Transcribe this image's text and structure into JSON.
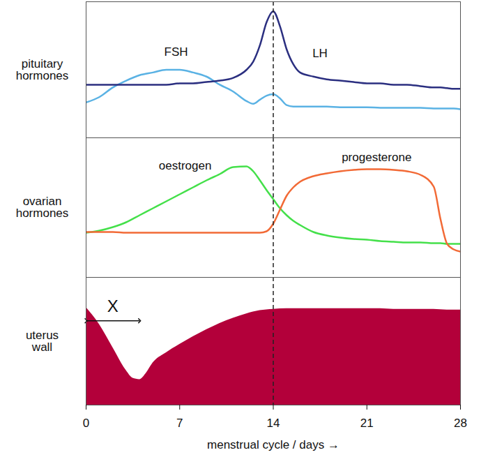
{
  "chart_data": [
    {
      "type": "line",
      "ylabel": "pituitary hormones",
      "x": [
        0,
        1,
        2,
        3,
        4,
        5,
        6,
        7,
        8,
        9,
        10,
        11,
        12,
        12.5,
        13,
        13.5,
        14,
        14.5,
        15,
        15.5,
        16,
        17,
        18,
        19,
        20,
        21,
        22,
        23,
        24,
        25,
        26,
        26.5,
        27,
        27.5,
        28
      ],
      "series": [
        {
          "name": "FSH",
          "color": "#5ab2e4",
          "values": [
            26,
            30,
            37,
            42,
            46,
            48,
            50,
            50,
            48,
            45,
            39,
            34,
            27,
            25,
            28,
            31,
            32,
            29,
            24,
            23,
            23,
            23,
            23,
            22.5,
            22.5,
            22.5,
            22,
            22,
            22,
            22,
            21.5,
            21.5,
            21.5,
            21.5,
            21
          ]
        },
        {
          "name": "LH",
          "color": "#2b2f80",
          "values": [
            39,
            39,
            39,
            39,
            39,
            39,
            39,
            40,
            40,
            41,
            42,
            44,
            50,
            56,
            68,
            85,
            93,
            82,
            65,
            54,
            48,
            45,
            43,
            42,
            41,
            40,
            40,
            39,
            39,
            38,
            37,
            37,
            36.5,
            36,
            36
          ]
        }
      ],
      "xlim": [
        0,
        28
      ],
      "ylim": [
        0,
        100
      ],
      "tick_labels": false,
      "vline": {
        "x": 14,
        "line_style": "dashed"
      }
    },
    {
      "type": "line",
      "ylabel": "ovarian hormones",
      "x": [
        0,
        1,
        2,
        3,
        4,
        5,
        6,
        7,
        8,
        9,
        10,
        11,
        12,
        12.5,
        13,
        13.5,
        14,
        14.5,
        15,
        15.5,
        16,
        17,
        18,
        19,
        20,
        21,
        22,
        23,
        24,
        25,
        26,
        26.5,
        27,
        27.5,
        28
      ],
      "series": [
        {
          "name": "oestrogen",
          "color": "#44e04a",
          "values": [
            32,
            33.5,
            36,
            39.5,
            44.5,
            49.5,
            54.5,
            59.5,
            64.5,
            69.5,
            74,
            79,
            79.5,
            76,
            69.5,
            62.5,
            56,
            49.5,
            44.5,
            40.5,
            37.5,
            32.5,
            30,
            28.5,
            27.5,
            27,
            26,
            25.5,
            25,
            25,
            24.5,
            24.5,
            24,
            24,
            24
          ]
        },
        {
          "name": "progesterone",
          "color": "#f26a36",
          "values": [
            32.5,
            32.5,
            32.5,
            32,
            32,
            32,
            32,
            32,
            32,
            32,
            32,
            32,
            32,
            32,
            32,
            33,
            38.5,
            48.5,
            58.5,
            64.5,
            68.5,
            72.5,
            74.5,
            76,
            77,
            77.5,
            77.5,
            77,
            76,
            73.5,
            65,
            42,
            24,
            20,
            18.5
          ]
        }
      ],
      "xlim": [
        0,
        28
      ],
      "ylim": [
        0,
        100
      ],
      "tick_labels": false,
      "vline": {
        "x": 14,
        "line_style": "dashed"
      }
    },
    {
      "type": "area",
      "ylabel": "uterus wall",
      "xlabel": "menstrual cycle / days",
      "x": [
        0,
        1,
        2,
        3,
        3.5,
        4,
        4.5,
        5,
        6,
        7,
        8,
        9,
        10,
        11,
        12,
        13,
        14,
        15,
        16,
        17,
        18,
        19,
        20,
        21,
        22,
        23,
        24,
        25,
        26,
        27,
        28
      ],
      "values": [
        76.5,
        63,
        45,
        27,
        21,
        20,
        25,
        33,
        41,
        47.5,
        53.5,
        59,
        64,
        68,
        71.5,
        74,
        75,
        75.5,
        75.5,
        75.5,
        75.5,
        75.5,
        75.5,
        75.5,
        75.5,
        75,
        75,
        75,
        75,
        74.5,
        74.5
      ],
      "color": "#b3003a",
      "xlim": [
        0,
        28
      ],
      "xticks": [
        0,
        7,
        14,
        21,
        28
      ],
      "ylim": [
        0,
        100
      ],
      "tick_labels": "x",
      "vline": {
        "x": 14,
        "line_style": "dashed"
      },
      "annotations": [
        {
          "text": "X",
          "x": [
            0,
            4
          ],
          "y": 66
        }
      ]
    }
  ]
}
